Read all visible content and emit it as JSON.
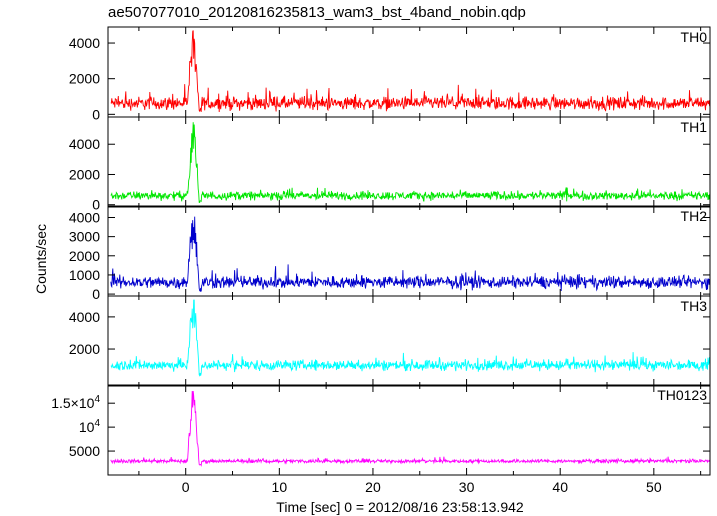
{
  "title": "ae507077010_20120816235813_wam3_bst_4band_nobin.qdp",
  "ylabel": "Counts/sec",
  "xlabel": "Time [sec] 0 = 2012/08/16 23:58:13.942",
  "chart_data": {
    "type": "line",
    "title": "ae507077010_20120816235813_wam3_bst_4band_nobin.qdp",
    "xlabel": "Time [sec] 0 = 2012/08/16 23:58:13.942",
    "ylabel": "Counts/sec",
    "xlim": [
      -8.3,
      56
    ],
    "x_ticks": [
      0,
      10,
      20,
      30,
      40,
      50
    ],
    "grid": false,
    "legend": "none",
    "panels": [
      {
        "name": "TH0",
        "color": "#ff0000",
        "ylim": [
          -150,
          4900
        ],
        "y_ticks": [
          0,
          2000,
          4000
        ],
        "y_tick_labels": [
          "0",
          "2000",
          "4000"
        ],
        "baseline": 620,
        "noise": 260,
        "peak": 4900,
        "gap": 120,
        "x": [
          -8,
          0.0,
          0.4,
          0.7,
          0.9,
          1.1,
          1.3,
          56
        ],
        "y": [
          620,
          650,
          4900,
          3000,
          4900,
          1700,
          400,
          620
        ]
      },
      {
        "name": "TH1",
        "color": "#00e600",
        "ylim": [
          -150,
          5800
        ],
        "y_ticks": [
          0,
          2000,
          4000
        ],
        "y_tick_labels": [
          "0",
          "2000",
          "4000"
        ],
        "baseline": 600,
        "noise": 200,
        "peak": 5500,
        "gap": 120,
        "x": [
          -8,
          0.0,
          0.4,
          0.8,
          1.0,
          1.3,
          56
        ],
        "y": [
          600,
          620,
          3500,
          5500,
          2500,
          400,
          600
        ]
      },
      {
        "name": "TH2",
        "color": "#0000cc",
        "ylim": [
          -100,
          4600
        ],
        "y_ticks": [
          0,
          1000,
          2000,
          3000,
          4000
        ],
        "y_tick_labels": [
          "0",
          "1000",
          "2000",
          "3000",
          "4000"
        ],
        "baseline": 620,
        "noise": 230,
        "peak": 4600,
        "gap": 100,
        "x": [
          -8,
          0.0,
          0.4,
          0.8,
          1.0,
          1.3,
          56
        ],
        "y": [
          620,
          650,
          3200,
          4600,
          2400,
          400,
          620
        ]
      },
      {
        "name": "TH3",
        "color": "#00ffff",
        "ylim": [
          -300,
          5300
        ],
        "y_ticks": [
          2000,
          4000
        ],
        "y_tick_labels": [
          "2000",
          "4000"
        ],
        "baseline": 1000,
        "noise": 230,
        "peak": 5300,
        "gap": 300,
        "x": [
          -8,
          0.0,
          0.4,
          0.8,
          1.0,
          1.3,
          56
        ],
        "y": [
          1000,
          1050,
          3500,
          5300,
          2500,
          700,
          1000
        ]
      },
      {
        "name": "TH0123",
        "color": "#ff00ff",
        "ylim": [
          0,
          18800
        ],
        "y_ticks": [
          5000,
          10000,
          15000
        ],
        "y_tick_labels": [
          "5000",
          "10^4",
          "1.5×10^4"
        ],
        "baseline": 2900,
        "noise": 260,
        "peak": 18800,
        "gap": 2000,
        "x": [
          -8,
          0.0,
          0.4,
          0.8,
          1.0,
          1.3,
          56
        ],
        "y": [
          2900,
          3000,
          12000,
          18800,
          9000,
          2000,
          2900
        ]
      }
    ]
  }
}
